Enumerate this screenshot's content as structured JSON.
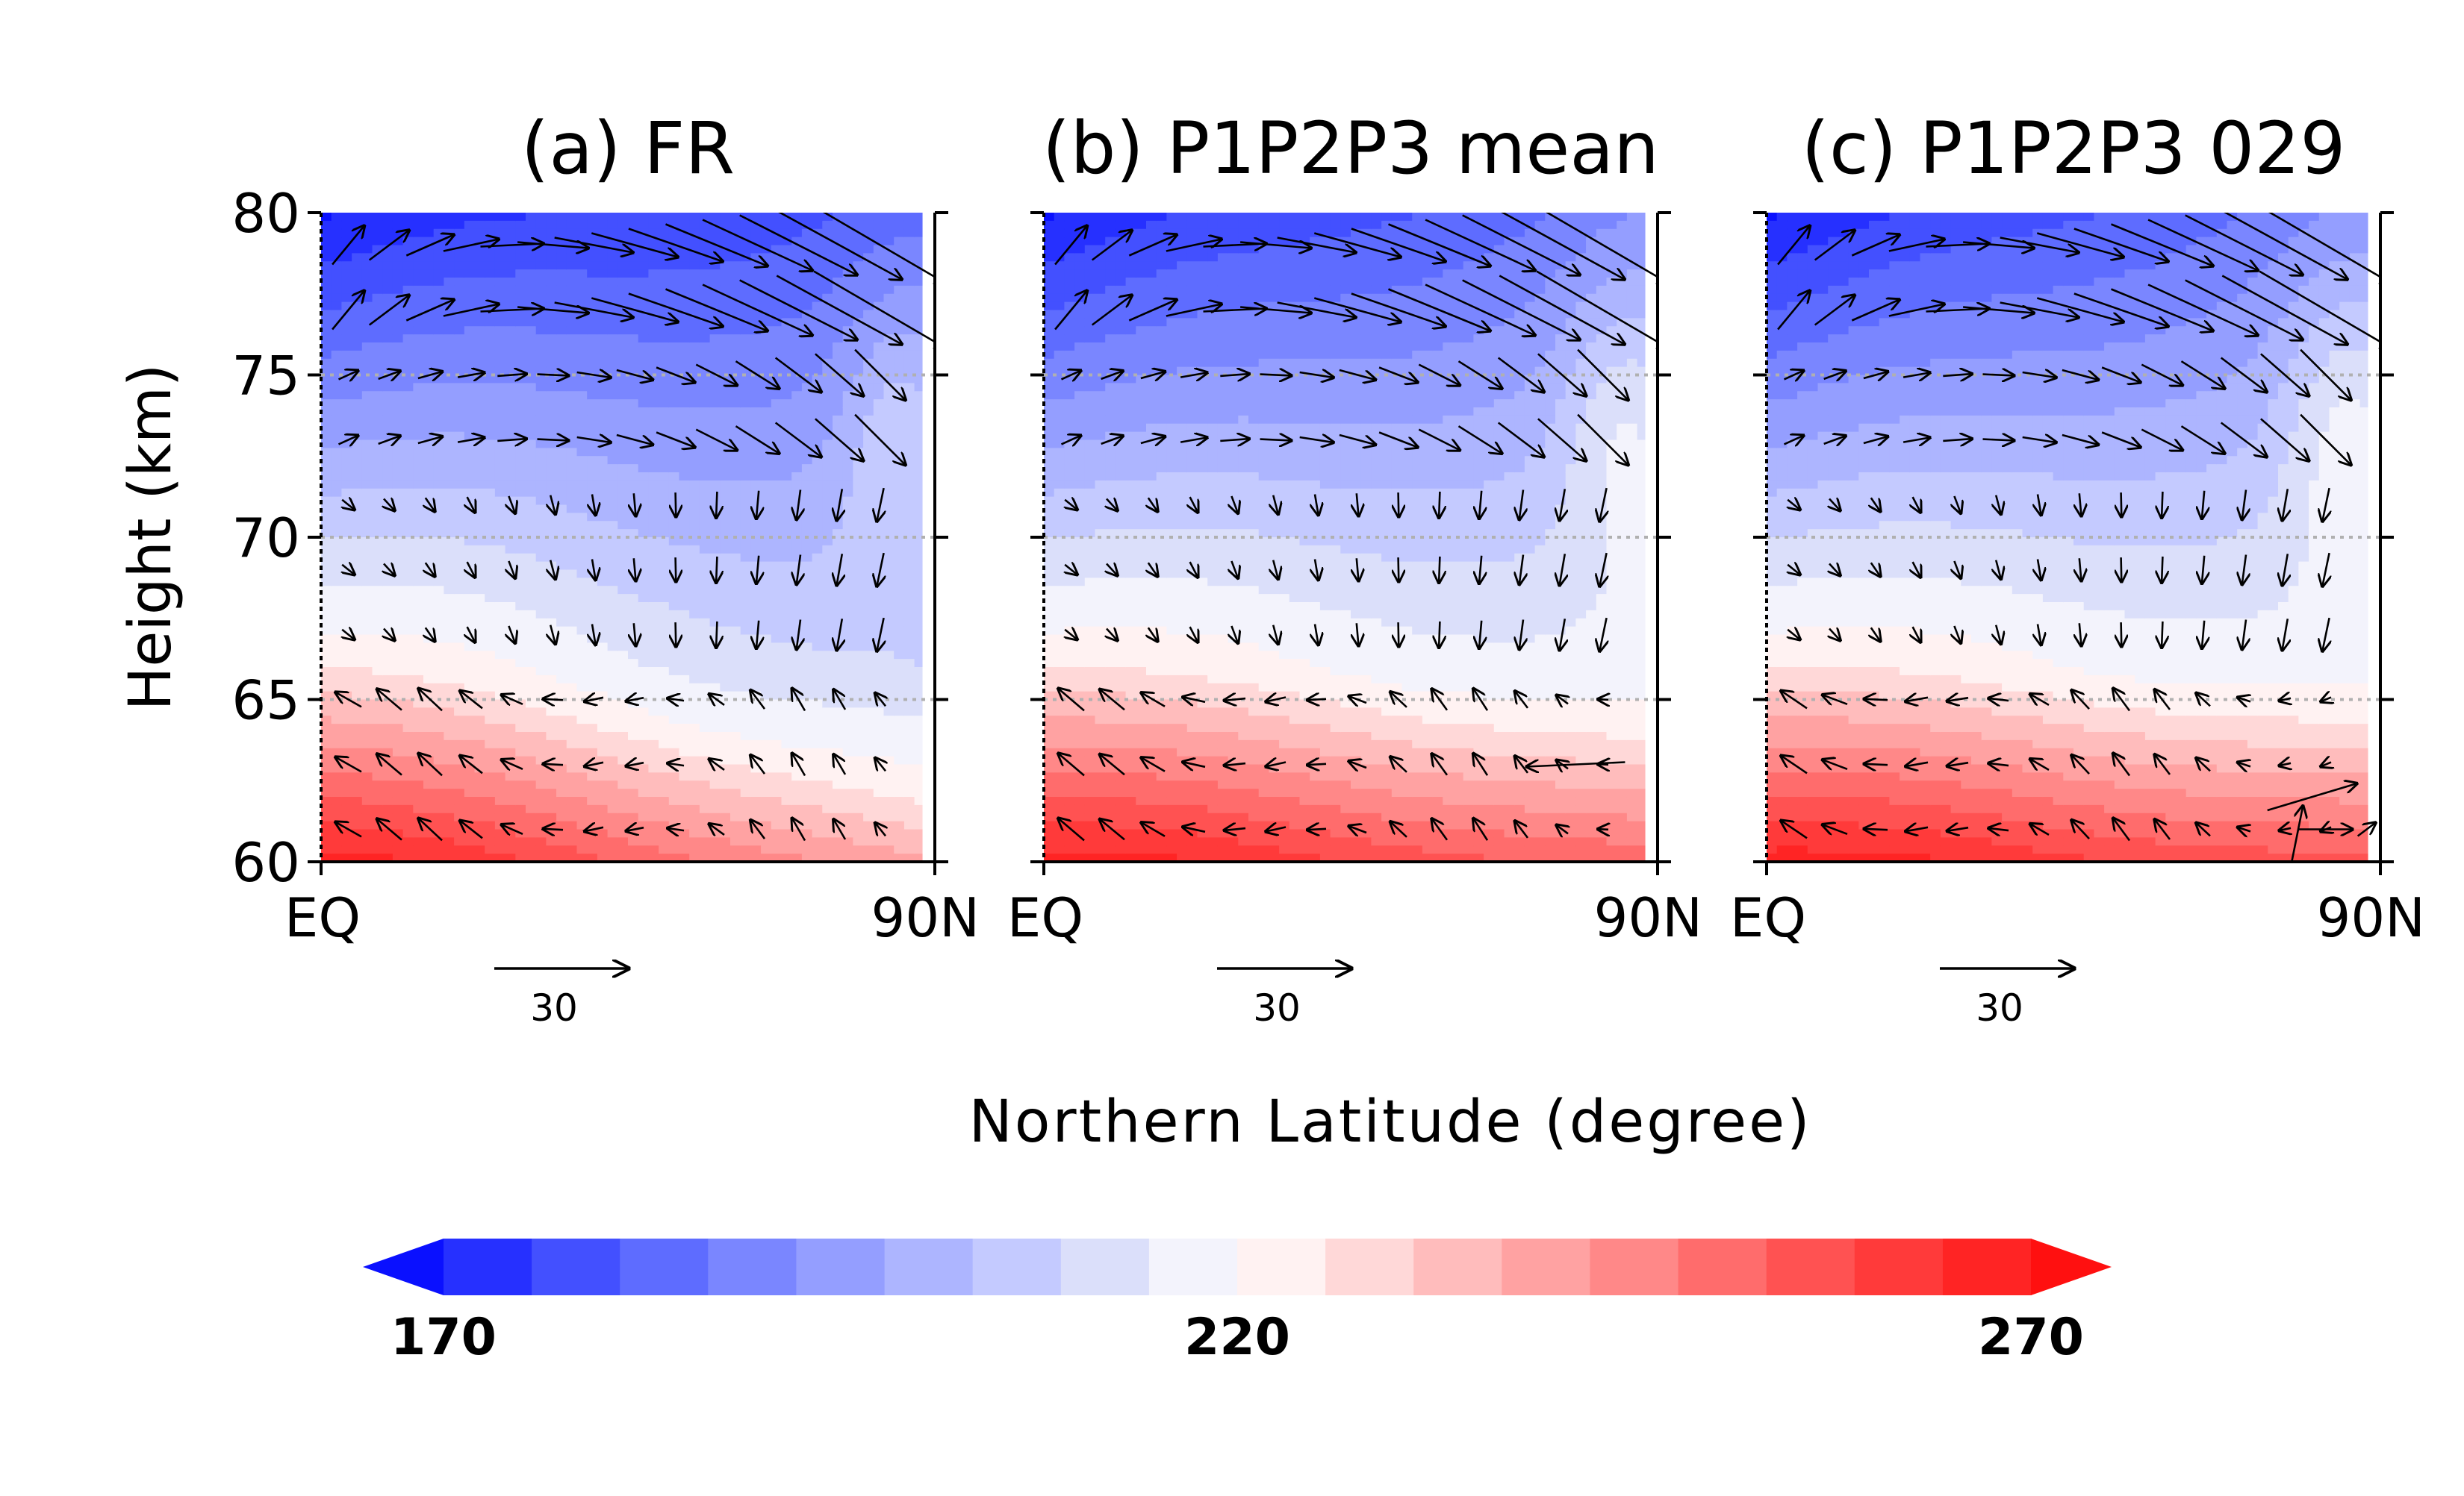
{
  "chart_data": {
    "type": "heatmap",
    "colorbar": {
      "min": 170,
      "max": 270,
      "step": 5,
      "labels": [
        "170",
        "220",
        "270"
      ],
      "extend": "both",
      "colors": [
        "#0a10ff",
        "#2630ff",
        "#4350ff",
        "#5e6cff",
        "#7a86ff",
        "#949eff",
        "#adb5ff",
        "#c4caff",
        "#dbdffa",
        "#f3f3fc",
        "#fff2f2",
        "#ffd8d8",
        "#ffbcbc",
        "#ffa2a2",
        "#ff8888",
        "#ff6c6c",
        "#ff5252",
        "#ff3a3a",
        "#ff2424",
        "#ff1010"
      ]
    },
    "xlabel": "Northern Latitude (degree)",
    "ylabel": "Height (km)",
    "xlim": [
      0,
      90
    ],
    "ylim": [
      60,
      80
    ],
    "xtick_labels": [
      "EQ",
      "90N"
    ],
    "ytick_values": [
      60,
      65,
      70,
      75,
      80
    ],
    "ytick_labels": [
      "60",
      "65",
      "70",
      "75",
      "80"
    ],
    "reference_vector": {
      "magnitude": 30,
      "label": "30"
    },
    "panels": [
      {
        "title": "(a) FR",
        "warm_layer_top_equator_km": 66.5,
        "warm_layer_top_pole_km": 62.0,
        "polar_warm_cell": true,
        "strong_arrows": []
      },
      {
        "title": "(b) P1P2P3 mean",
        "warm_layer_top_equator_km": 66.5,
        "warm_layer_top_pole_km": 64.0,
        "polar_warm_cell": true,
        "strong_arrows": [
          {
            "x": 78,
            "y": 63.0,
            "u": -22,
            "w": -1
          }
        ]
      },
      {
        "title": "(c) P1P2P3 029",
        "warm_layer_top_equator_km": 66.5,
        "warm_layer_top_pole_km": 64.5,
        "polar_warm_cell": true,
        "strong_arrows": [
          {
            "x": 80,
            "y": 62.0,
            "u": 20,
            "w": 6
          },
          {
            "x": 77,
            "y": 60.0,
            "u": 5,
            "w": 25
          },
          {
            "x": 82,
            "y": 61.0,
            "u": 12,
            "w": 0
          },
          {
            "x": 88,
            "y": 61.0,
            "u": 4,
            "w": 3
          }
        ]
      }
    ]
  }
}
